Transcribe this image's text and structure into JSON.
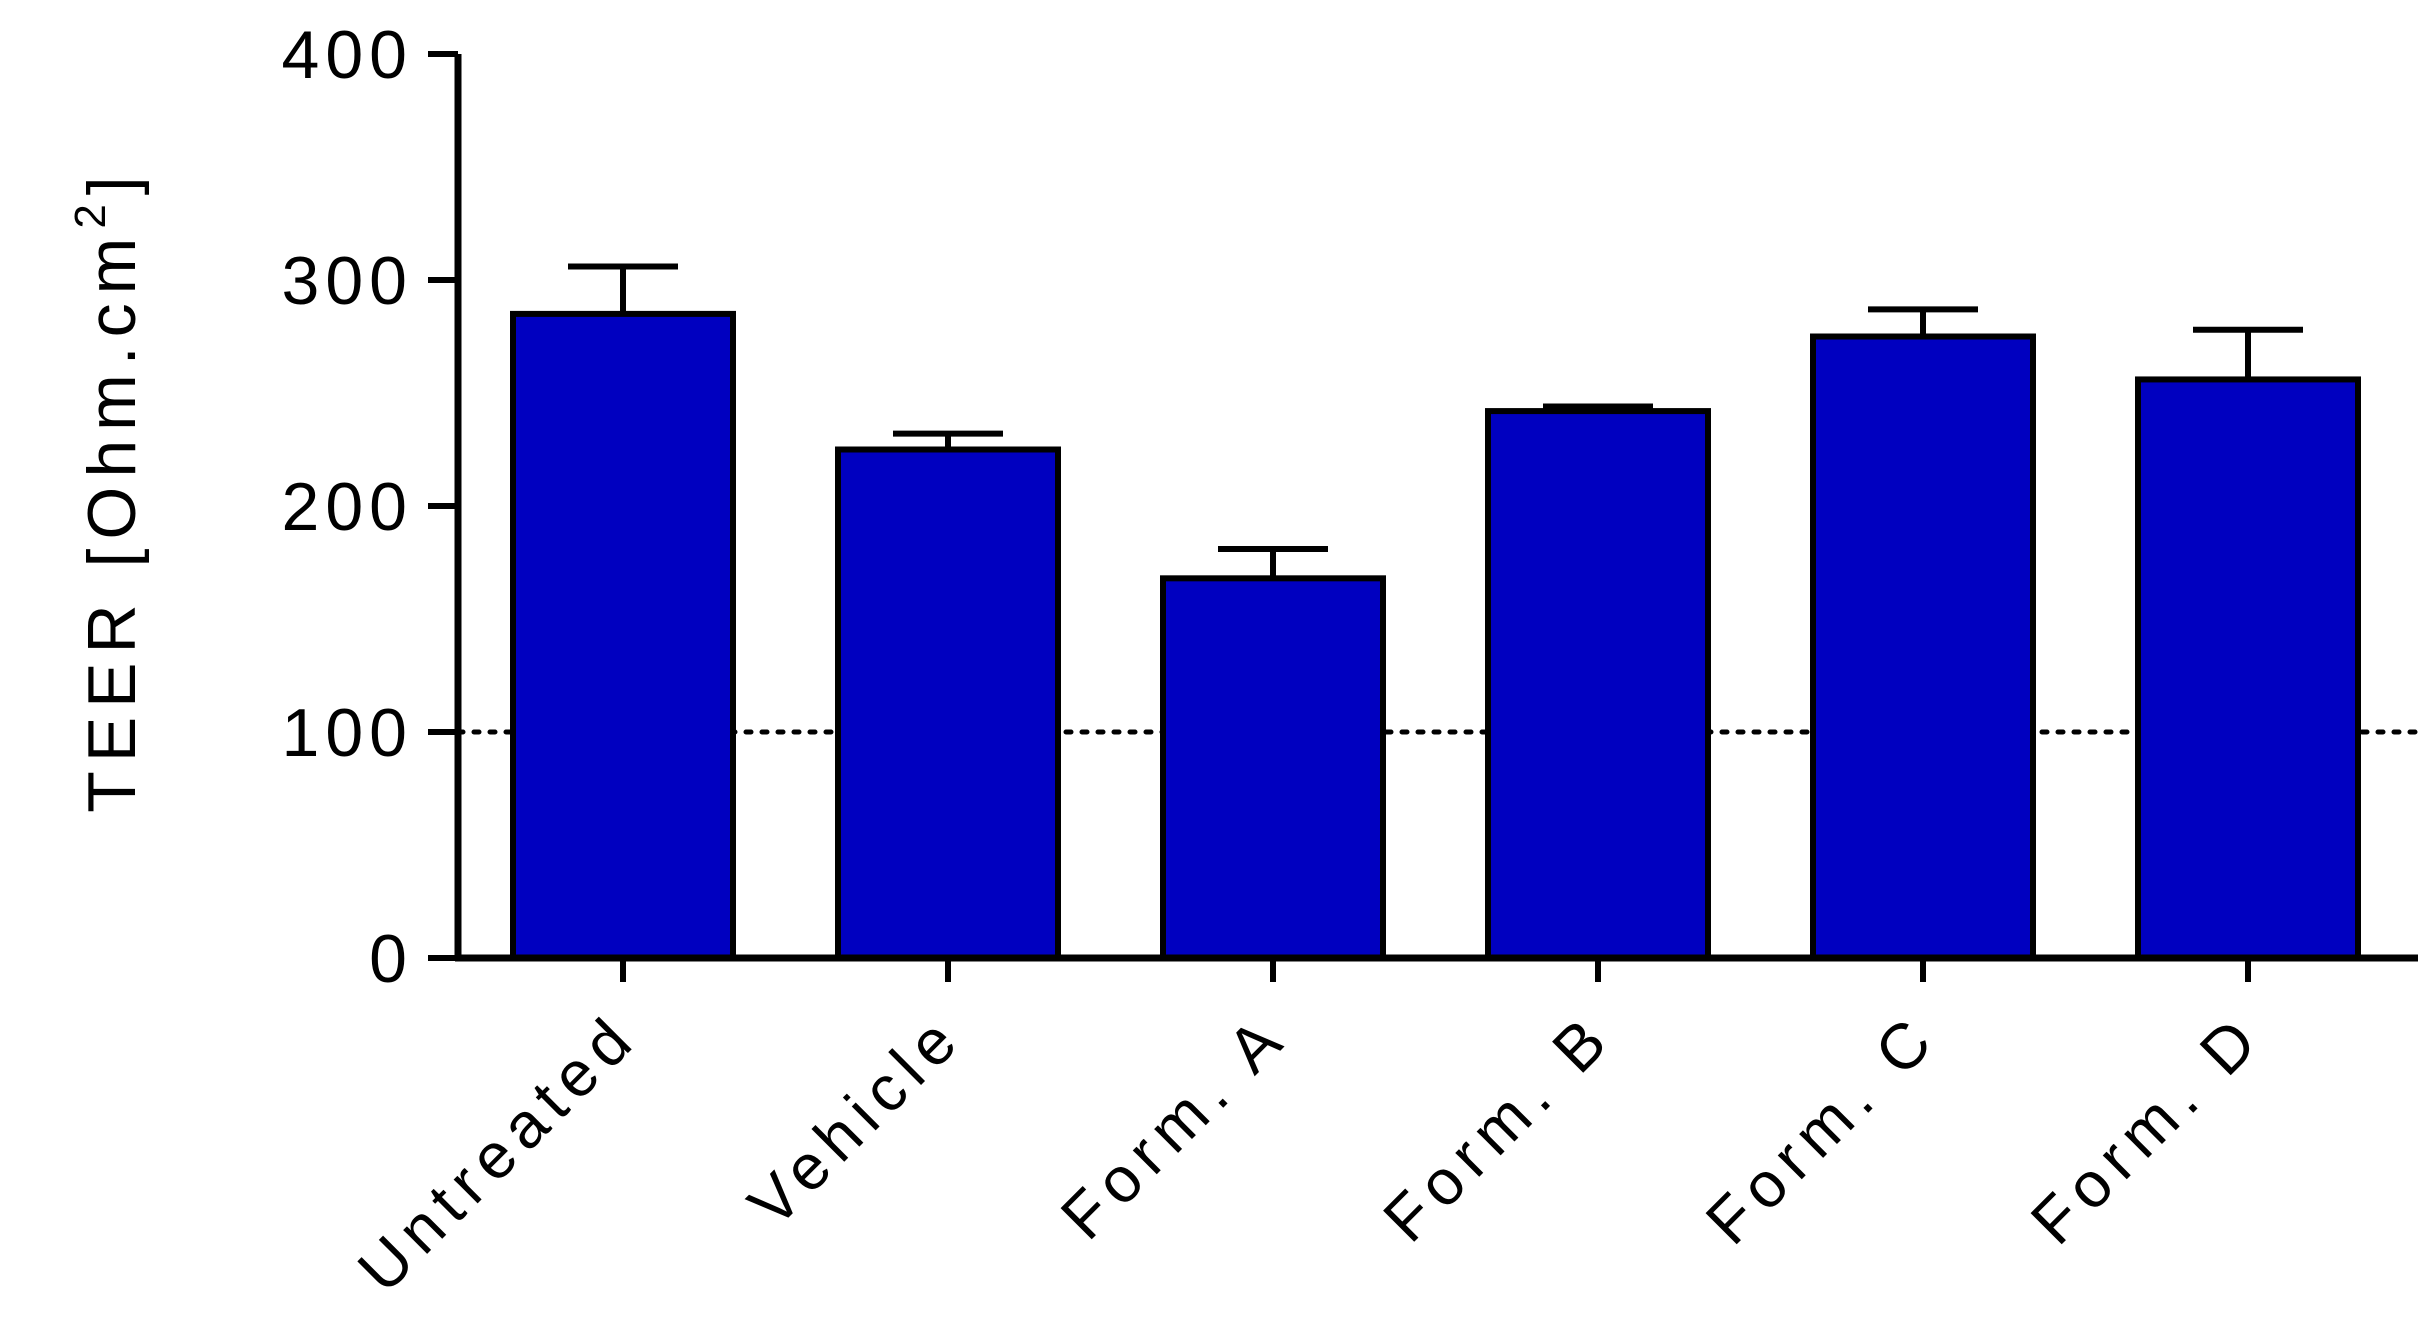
{
  "chart_data": {
    "type": "bar",
    "title": "",
    "xlabel": "",
    "ylabel": "TEER [Ohm.cm",
    "ylabel_superscript": "2",
    "ylabel_close": "]",
    "categories": [
      "Untreated",
      "Vehicle",
      "Form. A",
      "Form. B",
      "Form. C",
      "Form. D"
    ],
    "values": [
      285,
      225,
      168,
      242,
      275,
      256
    ],
    "errors": [
      21,
      7,
      13,
      2,
      12,
      22
    ],
    "ylim": [
      0,
      400
    ],
    "yticks": [
      0,
      100,
      200,
      300,
      400
    ],
    "reference_line": 100,
    "grid": false,
    "bar_color": "#0000c0"
  }
}
